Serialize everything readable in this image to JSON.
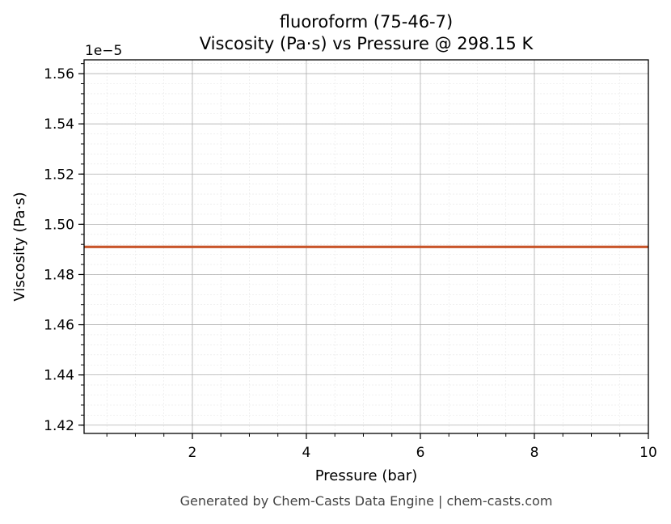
{
  "chart_data": {
    "type": "line",
    "title": "fluoroform (75-46-7)",
    "subtitle": "Viscosity (Pa·s) vs Pressure @ 298.15 K",
    "xlabel": "Pressure (bar)",
    "ylabel": "Viscosity (Pa·s)",
    "y_offset_label": "1e−5",
    "xlim": [
      0.1,
      10
    ],
    "ylim": [
      1.4167,
      1.5655
    ],
    "x_ticks": [
      2,
      4,
      6,
      8,
      10
    ],
    "x_tick_labels": [
      "2",
      "4",
      "6",
      "8",
      "10"
    ],
    "y_ticks": [
      1.42,
      1.44,
      1.46,
      1.48,
      1.5,
      1.52,
      1.54,
      1.56
    ],
    "y_tick_labels": [
      "1.42",
      "1.44",
      "1.46",
      "1.48",
      "1.50",
      "1.52",
      "1.54",
      "1.56"
    ],
    "grid": true,
    "series": [
      {
        "color": "#c8552a",
        "x": [
          0.1,
          10
        ],
        "y": [
          1.491,
          1.491
        ]
      }
    ]
  },
  "footer": {
    "text": "Generated by Chem-Casts Data Engine | chem-casts.com"
  }
}
